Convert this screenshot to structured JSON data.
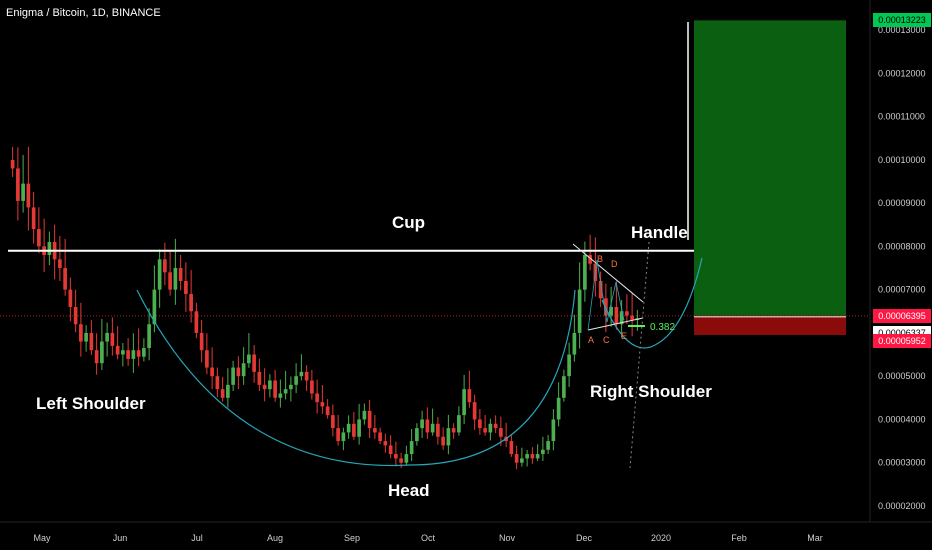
{
  "header": {
    "title": "Enigma / Bitcoin, 1D, BINANCE"
  },
  "colors": {
    "background": "#000000",
    "up_candle": "#4caf50",
    "down_candle": "#e53935",
    "resistance": "#ffffff",
    "cup_curve": "#26a6b9",
    "target_zone": "#0b5f10",
    "stop_zone": "#8b0b0b",
    "entry_line": "#b71c1c",
    "fib_label": "#5cf05c",
    "wave_label": "#ff7043",
    "axis_text": "#cfcfcf",
    "tag_green": "#00c853",
    "tag_red": "#ff1744"
  },
  "price_axis": {
    "ticks": [
      "0.00013000",
      "0.00012000",
      "0.00011000",
      "0.00010000",
      "0.00009000",
      "0.00008000",
      "0.00007000",
      "0.00006000",
      "0.00005000",
      "0.00004000",
      "0.00003000",
      "0.00002000"
    ],
    "tags": [
      {
        "value": "0.00013223",
        "kind": "target"
      },
      {
        "value": "0.00006395",
        "kind": "entry"
      },
      {
        "value": "0.00006337",
        "kind": "current"
      },
      {
        "value": "0.00005952",
        "kind": "stop"
      }
    ]
  },
  "time_axis": {
    "labels": [
      "May",
      "Jun",
      "Jul",
      "Aug",
      "Sep",
      "Oct",
      "Nov",
      "Dec",
      "2020",
      "Feb",
      "Mar"
    ]
  },
  "annotations": {
    "cup": "Cup",
    "handle": "Handle",
    "left_shoulder": "Left Shoulder",
    "right_shoulder": "Right Shoulder",
    "head": "Head",
    "fib": "0.382",
    "waves": [
      "A",
      "B",
      "C",
      "D",
      "E"
    ]
  },
  "chart_data": {
    "type": "candlestick",
    "symbol": "Enigma / Bitcoin",
    "interval": "1D",
    "exchange": "BINANCE",
    "ylim": [
      1.65e-05,
      0.0001345
    ],
    "x_range": [
      "2019-04-15",
      "2020-03-25"
    ],
    "resistance_level": 7.9e-05,
    "target": 0.00013223,
    "entry": 6.395e-05,
    "stop": 5.952e-05,
    "last_price": 6.337e-05,
    "closes": [
      [
        9.8e-05,
        9.05e-05,
        9.45e-05,
        8.9e-05,
        8.4e-05,
        8e-05,
        7.8e-05,
        8.1e-05,
        7.7e-05,
        7.5e-05,
        7e-05,
        6.6e-05,
        6.2e-05,
        5.8e-05,
        6e-05,
        5.6e-05,
        5.3e-05,
        5.8e-05,
        6e-05,
        5.7e-05
      ],
      [
        5.5e-05,
        5.6e-05,
        5.4e-05,
        5.6e-05,
        5.45e-05,
        5.65e-05,
        6.2e-05,
        7e-05,
        7.7e-05,
        7.4e-05,
        7e-05,
        7.5e-05,
        7.2e-05,
        6.9e-05,
        6.5e-05,
        6e-05,
        5.6e-05,
        5.2e-05,
        5e-05,
        4.7e-05
      ],
      [
        4.5e-05,
        4.8e-05,
        5.2e-05,
        5e-05,
        5.3e-05,
        5.5e-05,
        5.1e-05,
        4.8e-05,
        4.7e-05,
        4.9e-05,
        4.5e-05,
        4.6e-05,
        4.7e-05,
        4.8e-05,
        5e-05,
        5.1e-05,
        4.9e-05,
        4.6e-05,
        4.4e-05,
        4.3e-05
      ],
      [
        4.1e-05,
        3.8e-05,
        3.5e-05,
        3.7e-05,
        3.9e-05,
        3.6e-05,
        4e-05,
        4.2e-05,
        3.8e-05,
        3.7e-05,
        3.5e-05,
        3.4e-05,
        3.2e-05,
        3.1e-05,
        3e-05,
        3.2e-05,
        3.5e-05,
        3.8e-05,
        4e-05,
        3.7e-05
      ],
      [
        3.9e-05,
        3.6e-05,
        3.4e-05,
        3.8e-05,
        3.7e-05,
        4.1e-05,
        4.7e-05,
        4.4e-05,
        4e-05,
        3.8e-05,
        3.7e-05,
        3.9e-05,
        3.8e-05,
        3.6e-05,
        3.5e-05,
        3.2e-05,
        3e-05,
        3.1e-05,
        3.2e-05,
        3.1e-05
      ],
      [
        3.2e-05,
        3.3e-05,
        3.5e-05,
        4e-05,
        4.5e-05,
        5e-05,
        5.5e-05,
        6e-05,
        7e-05,
        7.8e-05,
        7.6e-05,
        7.2e-05,
        6.8e-05,
        6.4e-05,
        6.6e-05,
        6.2e-05,
        6.5e-05,
        6.4e-05,
        6.3e-05,
        6.34e-05
      ]
    ],
    "pattern_points": [
      {
        "name": "A",
        "x": "2019-12-03",
        "y": 6.18e-05
      },
      {
        "name": "B",
        "x": "2019-12-06",
        "y": 7.7e-05
      },
      {
        "name": "C",
        "x": "2019-12-11",
        "y": 6.18e-05
      },
      {
        "name": "D",
        "x": "2019-12-15",
        "y": 7.5e-05
      },
      {
        "name": "E",
        "x": "2019-12-19",
        "y": 6.2e-05
      }
    ]
  }
}
